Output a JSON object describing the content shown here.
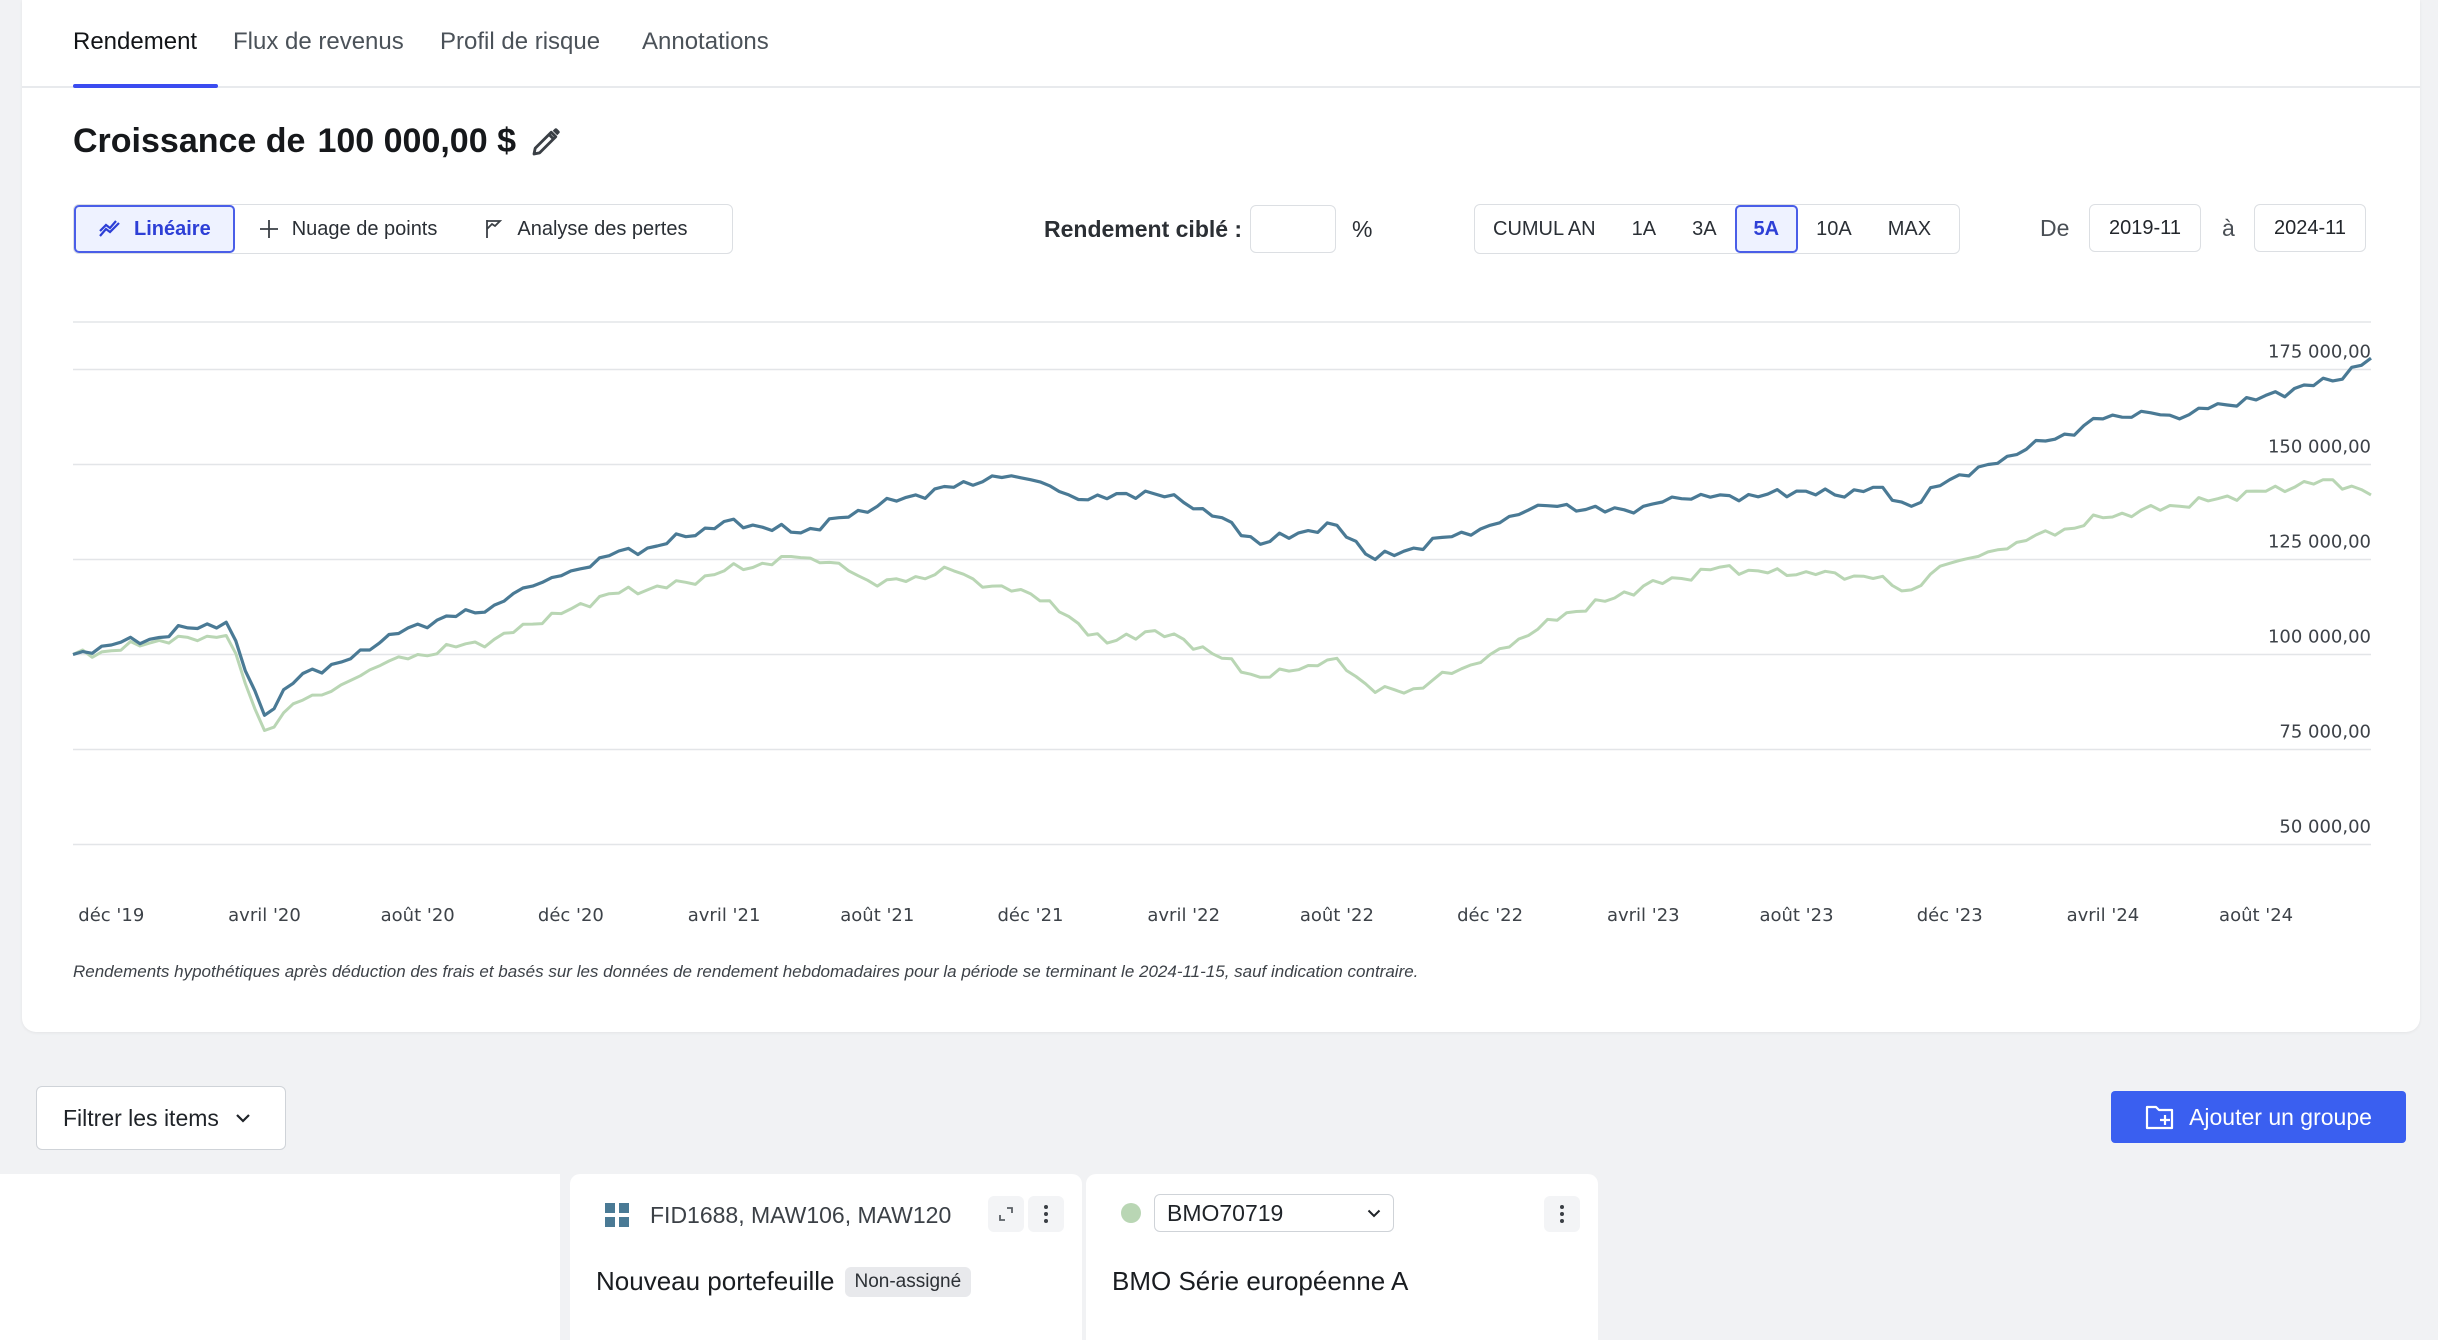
{
  "tabs": [
    {
      "label": "Rendement"
    },
    {
      "label": "Flux de revenus"
    },
    {
      "label": "Profil de risque"
    },
    {
      "label": "Annotations"
    }
  ],
  "title": {
    "prefix": "Croissance de",
    "amount": "100 000,00 $"
  },
  "chart_types": [
    {
      "label": "Linéaire",
      "icon": "line-chart-icon",
      "active": true
    },
    {
      "label": "Nuage de points",
      "icon": "crosshair-icon",
      "active": false
    },
    {
      "label": "Analyse des pertes",
      "icon": "drawdown-flag-icon",
      "active": false
    }
  ],
  "target": {
    "label": "Rendement ciblé :",
    "value": "",
    "unit": "%"
  },
  "ranges": [
    {
      "label": "CUMUL AN",
      "active": false
    },
    {
      "label": "1A",
      "active": false
    },
    {
      "label": "3A",
      "active": false
    },
    {
      "label": "5A",
      "active": true
    },
    {
      "label": "10A",
      "active": false
    },
    {
      "label": "MAX",
      "active": false
    }
  ],
  "dates": {
    "from_label": "De",
    "from": "2019-11",
    "to_label": "à",
    "to": "2024-11"
  },
  "chart_data": {
    "type": "line",
    "title": "",
    "xlabel": "",
    "ylabel": "",
    "ylim": [
      50000,
      175000
    ],
    "x_ticks": [
      "déc '19",
      "avril '20",
      "août '20",
      "déc '20",
      "avril '21",
      "août '21",
      "déc '21",
      "avril '22",
      "août '22",
      "déc '22",
      "avril '23",
      "août '23",
      "déc '23",
      "avril '24",
      "août '24"
    ],
    "y_ticks": [
      "175 000,00",
      "150 000,00",
      "125 000,00",
      "100 000,00",
      "75 000,00",
      "50 000,00"
    ],
    "y_tick_values": [
      175000,
      150000,
      125000,
      100000,
      75000,
      50000
    ],
    "x": [
      "2019-11",
      "2019-12",
      "2020-01",
      "2020-02",
      "2020-03",
      "2020-04",
      "2020-05",
      "2020-06",
      "2020-07",
      "2020-08",
      "2020-09",
      "2020-10",
      "2020-11",
      "2020-12",
      "2021-01",
      "2021-02",
      "2021-03",
      "2021-04",
      "2021-05",
      "2021-06",
      "2021-07",
      "2021-08",
      "2021-09",
      "2021-10",
      "2021-11",
      "2021-12",
      "2022-01",
      "2022-02",
      "2022-03",
      "2022-04",
      "2022-05",
      "2022-06",
      "2022-07",
      "2022-08",
      "2022-09",
      "2022-10",
      "2022-11",
      "2022-12",
      "2023-01",
      "2023-02",
      "2023-03",
      "2023-04",
      "2023-05",
      "2023-06",
      "2023-07",
      "2023-08",
      "2023-09",
      "2023-10",
      "2023-11",
      "2023-12",
      "2024-01",
      "2024-02",
      "2024-03",
      "2024-04",
      "2024-05",
      "2024-06",
      "2024-07",
      "2024-08",
      "2024-09",
      "2024-10",
      "2024-11"
    ],
    "series": [
      {
        "values": [
          100000,
          102500,
          104000,
          107000,
          108500,
          84000,
          95000,
          98000,
          103000,
          108000,
          110000,
          113000,
          118000,
          122000,
          126000,
          128000,
          131000,
          135000,
          133500,
          132000,
          136000,
          139000,
          142000,
          144000,
          147000,
          146000,
          142000,
          141000,
          143000,
          140000,
          136000,
          129000,
          132000,
          134000,
          125000,
          128000,
          131000,
          134000,
          138000,
          139500,
          137500,
          139000,
          141000,
          142000,
          141500,
          143000,
          142000,
          144000,
          139000,
          146000,
          150000,
          154000,
          158000,
          162000,
          164000,
          162000,
          166000,
          167000,
          170000,
          172000,
          178000
        ],
        "color": "#4a7a95"
      },
      {
        "values": [
          100000,
          101000,
          103000,
          104500,
          105000,
          80000,
          88000,
          92000,
          97000,
          100000,
          102000,
          104000,
          108000,
          112000,
          116000,
          117000,
          119000,
          122000,
          124000,
          125500,
          124000,
          118000,
          120500,
          122000,
          118000,
          116000,
          110000,
          103000,
          106000,
          104000,
          99000,
          94000,
          96000,
          99000,
          90000,
          91000,
          95000,
          100000,
          105000,
          111000,
          114000,
          118000,
          120000,
          123000,
          122000,
          121000,
          121500,
          120000,
          117000,
          124000,
          127000,
          130000,
          133000,
          136000,
          138000,
          139000,
          141000,
          143000,
          144000,
          146000,
          142000
        ],
        "color": "#b9d6b4"
      }
    ]
  },
  "note": "Rendements hypothétiques après déduction des frais et basés sur les données de rendement hebdomadaires pour la période se terminant le 2024-11-15, sauf indication contraire.",
  "filter": {
    "label": "Filtrer les items"
  },
  "add_group": {
    "label": "Ajouter un groupe"
  },
  "cards": [
    {
      "codes": "FID1688, MAW106, MAW120",
      "name": "Nouveau portefeuille",
      "badge": "Non-assigné"
    },
    {
      "code": "BMO70719",
      "name": "BMO Série européenne A"
    }
  ]
}
